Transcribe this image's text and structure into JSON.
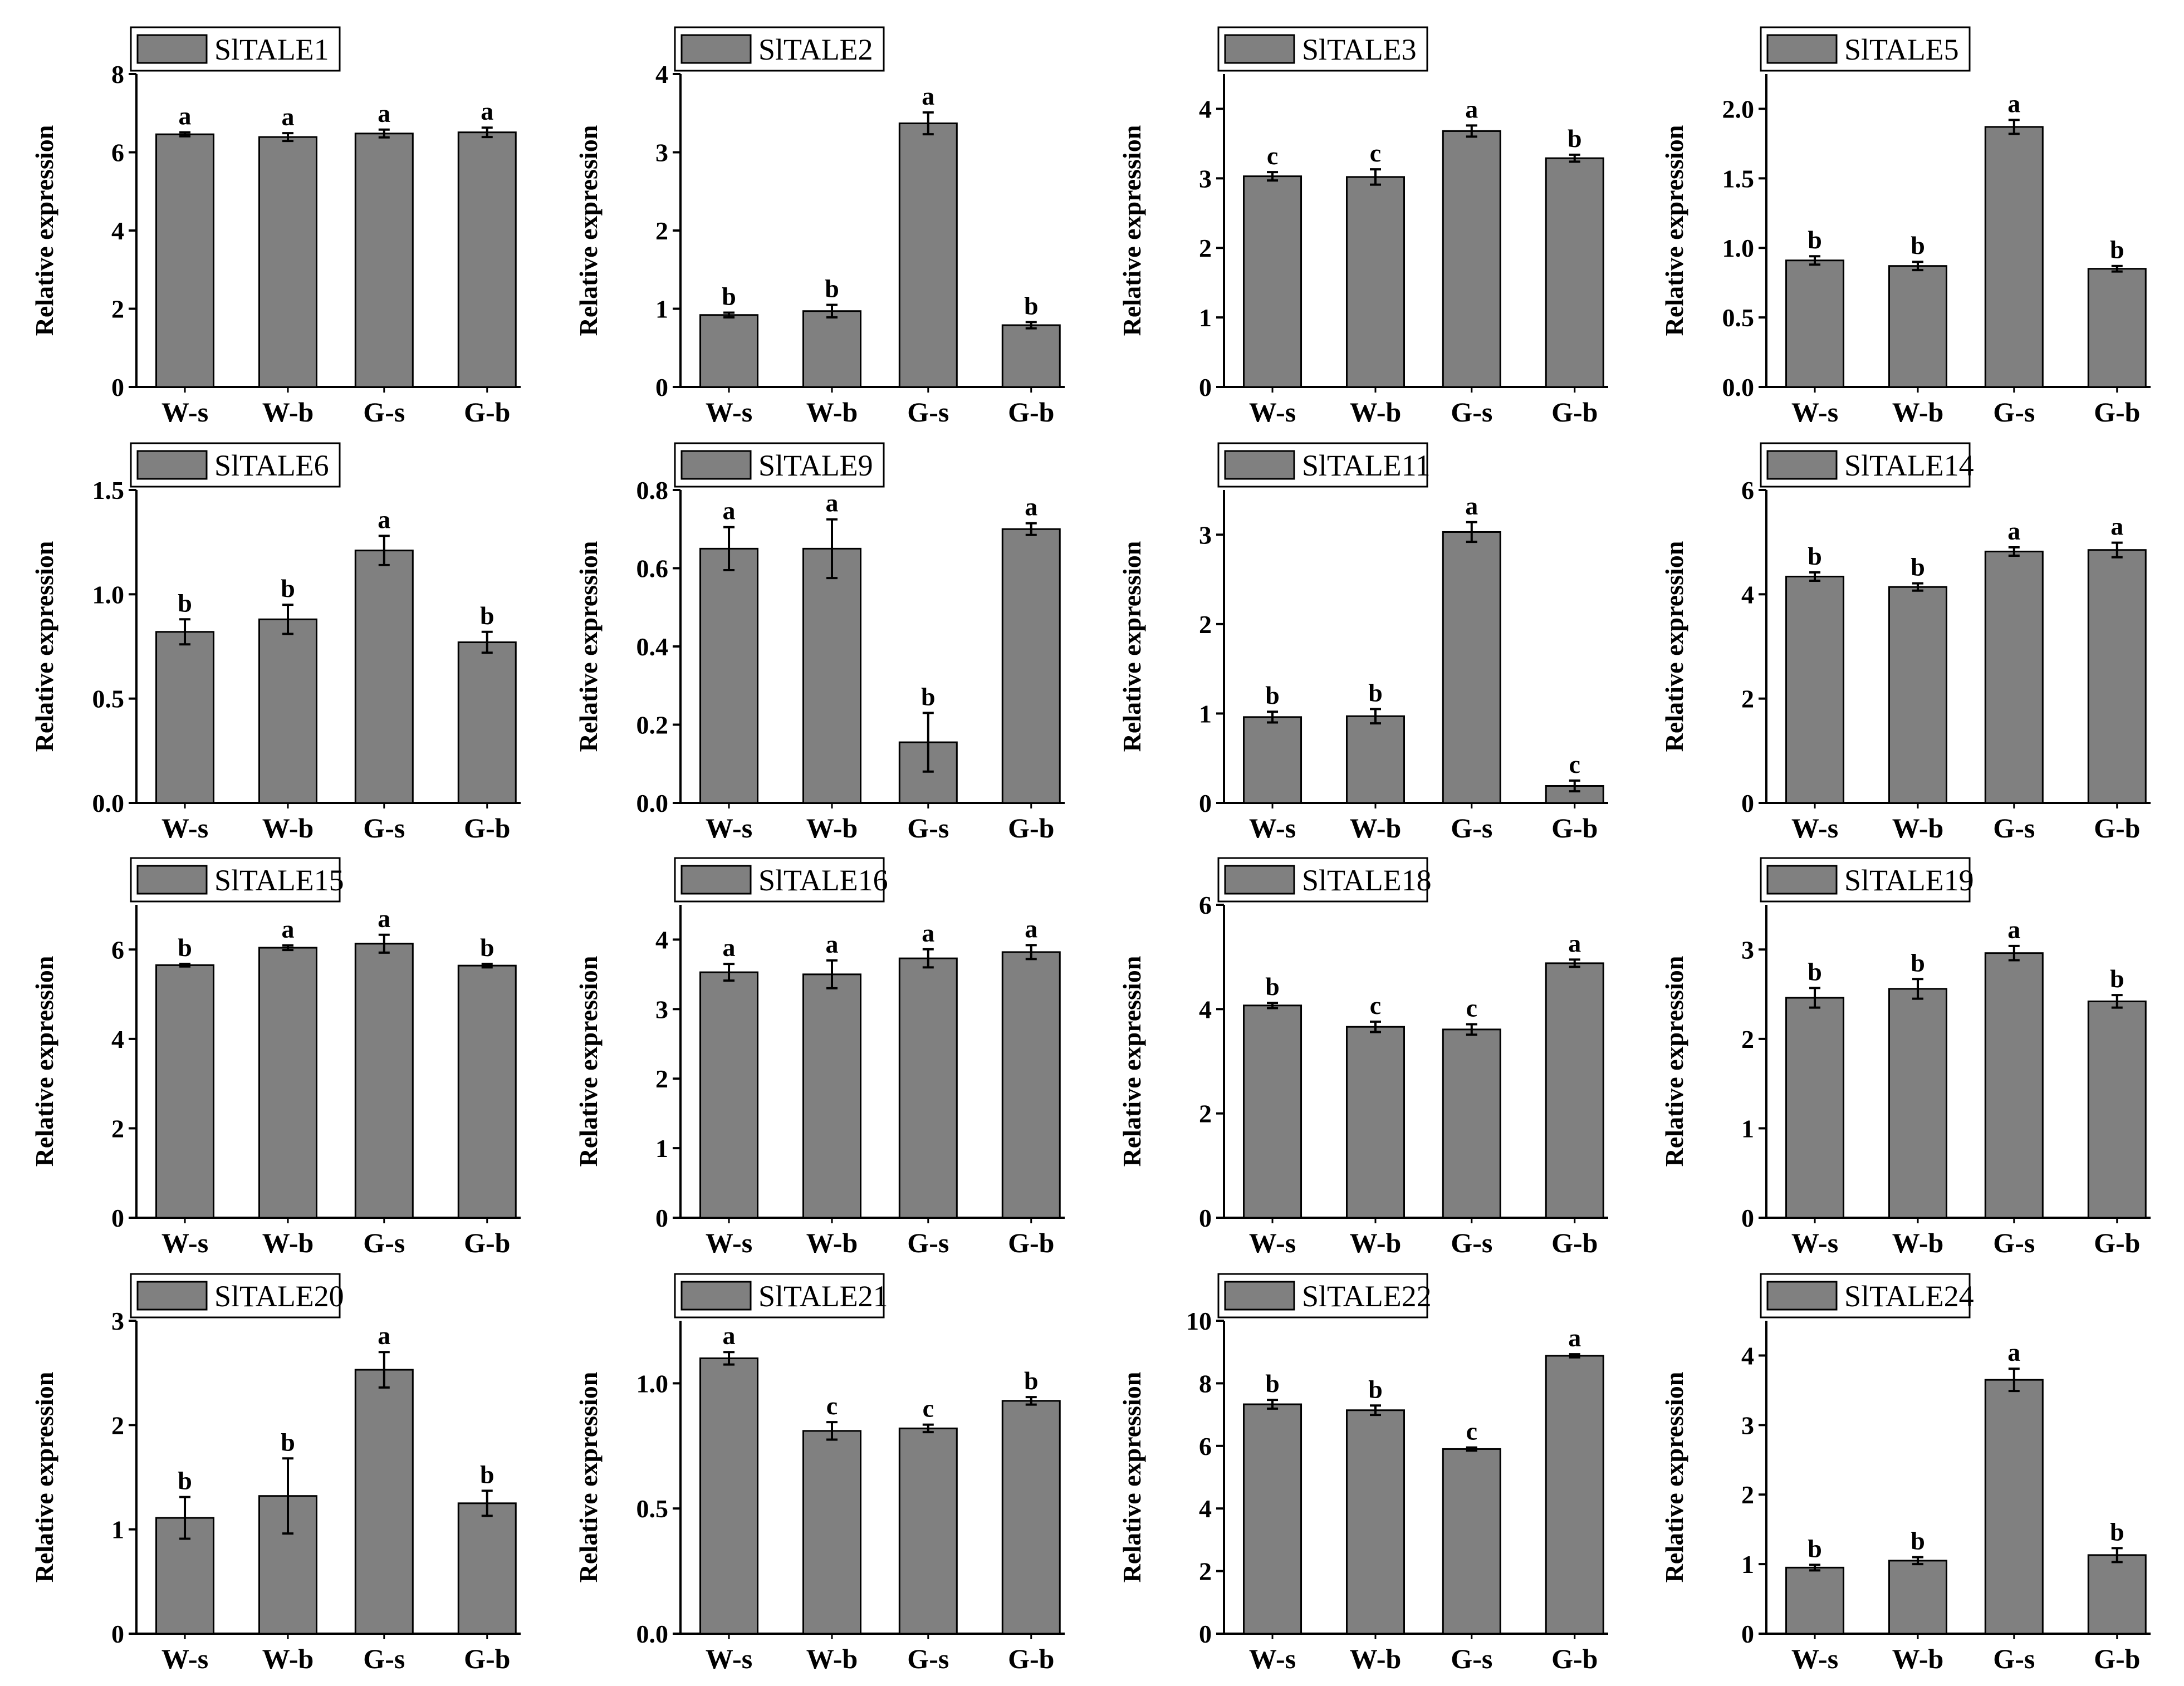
{
  "figure": {
    "colors": {
      "bar": "#808080",
      "edge": "#000000",
      "background": "#ffffff"
    }
  },
  "chart_data": [
    {
      "type": "bar",
      "legend": "SlTALE1",
      "ylabel": "Relative expression",
      "categories": [
        "W-s",
        "W-b",
        "G-s",
        "G-b"
      ],
      "values": [
        6.46,
        6.39,
        6.48,
        6.51
      ],
      "errors": [
        0.05,
        0.1,
        0.1,
        0.12
      ],
      "significance": [
        "a",
        "a",
        "a",
        "a"
      ],
      "ylim": [
        0,
        8
      ],
      "yticks": [
        0,
        2,
        4,
        6,
        8
      ],
      "ytick_labels": [
        "0",
        "2",
        "4",
        "6",
        "8"
      ]
    },
    {
      "type": "bar",
      "legend": "SlTALE2",
      "ylabel": "Relative expression",
      "categories": [
        "W-s",
        "W-b",
        "G-s",
        "G-b"
      ],
      "values": [
        0.92,
        0.97,
        3.37,
        0.79
      ],
      "errors": [
        0.03,
        0.08,
        0.14,
        0.04
      ],
      "significance": [
        "b",
        "b",
        "a",
        "b"
      ],
      "ylim": [
        0,
        4
      ],
      "yticks": [
        0,
        1,
        2,
        3,
        4
      ],
      "ytick_labels": [
        "0",
        "1",
        "2",
        "3",
        "4"
      ]
    },
    {
      "type": "bar",
      "legend": "SlTALE3",
      "ylabel": "Relative expression",
      "categories": [
        "W-s",
        "W-b",
        "G-s",
        "G-b"
      ],
      "values": [
        3.03,
        3.02,
        3.68,
        3.29
      ],
      "errors": [
        0.06,
        0.11,
        0.08,
        0.05
      ],
      "significance": [
        "c",
        "c",
        "a",
        "b"
      ],
      "ylim": [
        0,
        4.5
      ],
      "yticks": [
        0,
        1,
        2,
        3,
        4
      ],
      "ytick_labels": [
        "0",
        "1",
        "2",
        "3",
        "4"
      ]
    },
    {
      "type": "bar",
      "legend": "SlTALE5",
      "ylabel": "Relative expression",
      "categories": [
        "W-s",
        "W-b",
        "G-s",
        "G-b"
      ],
      "values": [
        0.91,
        0.87,
        1.87,
        0.85
      ],
      "errors": [
        0.03,
        0.03,
        0.05,
        0.02
      ],
      "significance": [
        "b",
        "b",
        "a",
        "b"
      ],
      "ylim": [
        0,
        2.25
      ],
      "yticks": [
        0,
        0.5,
        1,
        1.5,
        2
      ],
      "ytick_labels": [
        "0.0",
        "0.5",
        "1.0",
        "1.5",
        "2.0"
      ]
    },
    {
      "type": "bar",
      "legend": "SlTALE6",
      "ylabel": "Relative expression",
      "categories": [
        "W-s",
        "W-b",
        "G-s",
        "G-b"
      ],
      "values": [
        0.82,
        0.88,
        1.21,
        0.77
      ],
      "errors": [
        0.06,
        0.07,
        0.07,
        0.05
      ],
      "significance": [
        "b",
        "b",
        "a",
        "b"
      ],
      "ylim": [
        0,
        1.5
      ],
      "yticks": [
        0,
        0.5,
        1,
        1.5
      ],
      "ytick_labels": [
        "0.0",
        "0.5",
        "1.0",
        "1.5"
      ]
    },
    {
      "type": "bar",
      "legend": "SlTALE9",
      "ylabel": "Relative expression",
      "categories": [
        "W-s",
        "W-b",
        "G-s",
        "G-b"
      ],
      "values": [
        0.65,
        0.65,
        0.155,
        0.7
      ],
      "errors": [
        0.055,
        0.075,
        0.075,
        0.015
      ],
      "significance": [
        "a",
        "a",
        "b",
        "a"
      ],
      "ylim": [
        0,
        0.8
      ],
      "yticks": [
        0,
        0.2,
        0.4,
        0.6,
        0.8
      ],
      "ytick_labels": [
        "0.0",
        "0.2",
        "0.4",
        "0.6",
        "0.8"
      ]
    },
    {
      "type": "bar",
      "legend": "SlTALE11",
      "ylabel": "Relative expression",
      "categories": [
        "W-s",
        "W-b",
        "G-s",
        "G-b"
      ],
      "values": [
        0.96,
        0.97,
        3.03,
        0.19
      ],
      "errors": [
        0.06,
        0.08,
        0.11,
        0.06
      ],
      "significance": [
        "b",
        "b",
        "a",
        "c"
      ],
      "ylim": [
        0,
        3.5
      ],
      "yticks": [
        0,
        1,
        2,
        3
      ],
      "ytick_labels": [
        "0",
        "1",
        "2",
        "3"
      ]
    },
    {
      "type": "bar",
      "legend": "SlTALE14",
      "ylabel": "Relative expression",
      "categories": [
        "W-s",
        "W-b",
        "G-s",
        "G-b"
      ],
      "values": [
        4.34,
        4.14,
        4.82,
        4.85
      ],
      "errors": [
        0.08,
        0.07,
        0.08,
        0.14
      ],
      "significance": [
        "b",
        "b",
        "a",
        "a"
      ],
      "ylim": [
        0,
        6
      ],
      "yticks": [
        0,
        2,
        4,
        6
      ],
      "ytick_labels": [
        "0",
        "2",
        "4",
        "6"
      ]
    },
    {
      "type": "bar",
      "legend": "SlTALE15",
      "ylabel": "Relative expression",
      "categories": [
        "W-s",
        "W-b",
        "G-s",
        "G-b"
      ],
      "values": [
        5.65,
        6.04,
        6.13,
        5.64
      ],
      "errors": [
        0.03,
        0.05,
        0.2,
        0.04
      ],
      "significance": [
        "b",
        "a",
        "a",
        "b"
      ],
      "ylim": [
        0,
        7
      ],
      "yticks": [
        0,
        2,
        4,
        6
      ],
      "ytick_labels": [
        "0",
        "2",
        "4",
        "6"
      ]
    },
    {
      "type": "bar",
      "legend": "SlTALE16",
      "ylabel": "Relative expression",
      "categories": [
        "W-s",
        "W-b",
        "G-s",
        "G-b"
      ],
      "values": [
        3.53,
        3.5,
        3.73,
        3.82
      ],
      "errors": [
        0.12,
        0.2,
        0.13,
        0.1
      ],
      "significance": [
        "a",
        "a",
        "a",
        "a"
      ],
      "ylim": [
        0,
        4.5
      ],
      "yticks": [
        0,
        1,
        2,
        3,
        4
      ],
      "ytick_labels": [
        "0",
        "1",
        "2",
        "3",
        "4"
      ]
    },
    {
      "type": "bar",
      "legend": "SlTALE18",
      "ylabel": "Relative expression",
      "categories": [
        "W-s",
        "W-b",
        "G-s",
        "G-b"
      ],
      "values": [
        4.07,
        3.66,
        3.61,
        4.88
      ],
      "errors": [
        0.05,
        0.1,
        0.1,
        0.07
      ],
      "significance": [
        "b",
        "c",
        "c",
        "a"
      ],
      "ylim": [
        0,
        6
      ],
      "yticks": [
        0,
        2,
        4,
        6
      ],
      "ytick_labels": [
        "0",
        "2",
        "4",
        "6"
      ]
    },
    {
      "type": "bar",
      "legend": "SlTALE19",
      "ylabel": "Relative expression",
      "categories": [
        "W-s",
        "W-b",
        "G-s",
        "G-b"
      ],
      "values": [
        2.46,
        2.56,
        2.96,
        2.42
      ],
      "errors": [
        0.11,
        0.11,
        0.08,
        0.07
      ],
      "significance": [
        "b",
        "b",
        "a",
        "b"
      ],
      "ylim": [
        0,
        3.5
      ],
      "yticks": [
        0,
        1,
        2,
        3
      ],
      "ytick_labels": [
        "0",
        "1",
        "2",
        "3"
      ]
    },
    {
      "type": "bar",
      "legend": "SlTALE20",
      "ylabel": "Relative expression",
      "categories": [
        "W-s",
        "W-b",
        "G-s",
        "G-b"
      ],
      "values": [
        1.11,
        1.32,
        2.53,
        1.25
      ],
      "errors": [
        0.2,
        0.36,
        0.17,
        0.12
      ],
      "significance": [
        "b",
        "b",
        "a",
        "b"
      ],
      "ylim": [
        0,
        3
      ],
      "yticks": [
        0,
        1,
        2,
        3
      ],
      "ytick_labels": [
        "0",
        "1",
        "2",
        "3"
      ]
    },
    {
      "type": "bar",
      "legend": "SlTALE21",
      "ylabel": "Relative expression",
      "categories": [
        "W-s",
        "W-b",
        "G-s",
        "G-b"
      ],
      "values": [
        1.1,
        0.81,
        0.82,
        0.93
      ],
      "errors": [
        0.025,
        0.035,
        0.015,
        0.015
      ],
      "significance": [
        "a",
        "c",
        "c",
        "b"
      ],
      "ylim": [
        0,
        1.25
      ],
      "yticks": [
        0,
        0.5,
        1
      ],
      "ytick_labels": [
        "0.0",
        "0.5",
        "1.0"
      ]
    },
    {
      "type": "bar",
      "legend": "SlTALE22",
      "ylabel": "Relative expression",
      "categories": [
        "W-s",
        "W-b",
        "G-s",
        "G-b"
      ],
      "values": [
        7.33,
        7.14,
        5.9,
        8.88
      ],
      "errors": [
        0.14,
        0.15,
        0.05,
        0.05
      ],
      "significance": [
        "b",
        "b",
        "c",
        "a"
      ],
      "ylim": [
        0,
        10
      ],
      "yticks": [
        0,
        2,
        4,
        6,
        8,
        10
      ],
      "ytick_labels": [
        "0",
        "2",
        "4",
        "6",
        "8",
        "10"
      ]
    },
    {
      "type": "bar",
      "legend": "SlTALE24",
      "ylabel": "Relative expression",
      "categories": [
        "W-s",
        "W-b",
        "G-s",
        "G-b"
      ],
      "values": [
        0.95,
        1.05,
        3.65,
        1.13
      ],
      "errors": [
        0.04,
        0.05,
        0.16,
        0.1
      ],
      "significance": [
        "b",
        "b",
        "a",
        "b"
      ],
      "ylim": [
        0,
        4.5
      ],
      "yticks": [
        0,
        1,
        2,
        3,
        4
      ],
      "ytick_labels": [
        "0",
        "1",
        "2",
        "3",
        "4"
      ]
    }
  ]
}
